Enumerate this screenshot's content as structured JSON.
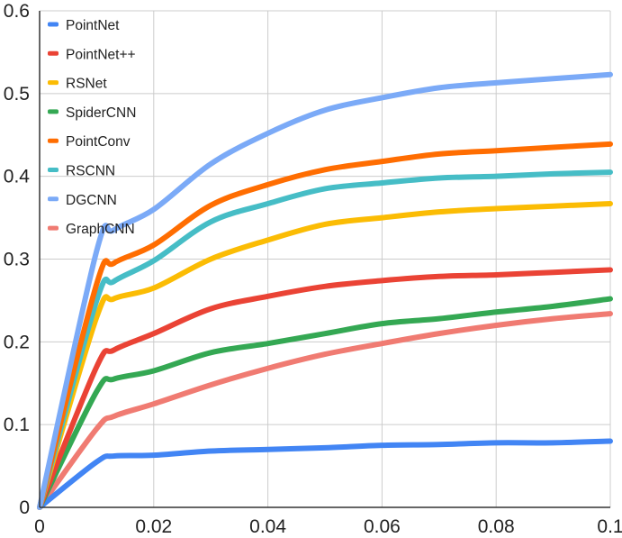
{
  "chart_data": {
    "type": "line",
    "title": "",
    "xlabel": "",
    "ylabel": "",
    "xlim": [
      0,
      0.1
    ],
    "ylim": [
      0,
      0.6
    ],
    "xticks": [
      "0",
      "0.02",
      "0.04",
      "0.06",
      "0.08",
      "0.1"
    ],
    "yticks": [
      "0",
      "0.1",
      "0.2",
      "0.3",
      "0.4",
      "0.5",
      "0.6"
    ],
    "grid": true,
    "legend_position": "top-left",
    "x": [
      0,
      0.01,
      0.013,
      0.02,
      0.03,
      0.04,
      0.05,
      0.06,
      0.07,
      0.08,
      0.09,
      0.1
    ],
    "series": [
      {
        "name": "PointNet",
        "color": "#4285F4",
        "values": [
          0,
          0.055,
          0.062,
          0.063,
          0.068,
          0.07,
          0.072,
          0.075,
          0.076,
          0.078,
          0.078,
          0.08
        ]
      },
      {
        "name": "PointNet++",
        "color": "#EA4335",
        "values": [
          0,
          0.17,
          0.19,
          0.21,
          0.24,
          0.255,
          0.267,
          0.274,
          0.279,
          0.281,
          0.284,
          0.287
        ]
      },
      {
        "name": "RSNet",
        "color": "#FBBC04",
        "values": [
          0,
          0.23,
          0.252,
          0.265,
          0.3,
          0.323,
          0.342,
          0.35,
          0.357,
          0.361,
          0.364,
          0.367
        ]
      },
      {
        "name": "SpiderCNN",
        "color": "#34A853",
        "values": [
          0,
          0.14,
          0.155,
          0.165,
          0.187,
          0.198,
          0.21,
          0.222,
          0.228,
          0.236,
          0.243,
          0.252
        ]
      },
      {
        "name": "PointConv",
        "color": "#FF6D01",
        "values": [
          0,
          0.27,
          0.295,
          0.317,
          0.365,
          0.39,
          0.408,
          0.418,
          0.427,
          0.431,
          0.435,
          0.439
        ]
      },
      {
        "name": "RSCNN",
        "color": "#46BDC6",
        "values": [
          0,
          0.25,
          0.273,
          0.298,
          0.345,
          0.367,
          0.385,
          0.392,
          0.398,
          0.4,
          0.403,
          0.405
        ]
      },
      {
        "name": "DGCNN",
        "color": "#7BAAF7",
        "values": [
          0,
          0.31,
          0.335,
          0.36,
          0.415,
          0.452,
          0.48,
          0.495,
          0.507,
          0.513,
          0.518,
          0.523
        ]
      },
      {
        "name": "GraphCNN",
        "color": "#F07B72",
        "values": [
          0,
          0.095,
          0.11,
          0.125,
          0.148,
          0.168,
          0.185,
          0.198,
          0.21,
          0.22,
          0.228,
          0.234
        ]
      }
    ]
  }
}
